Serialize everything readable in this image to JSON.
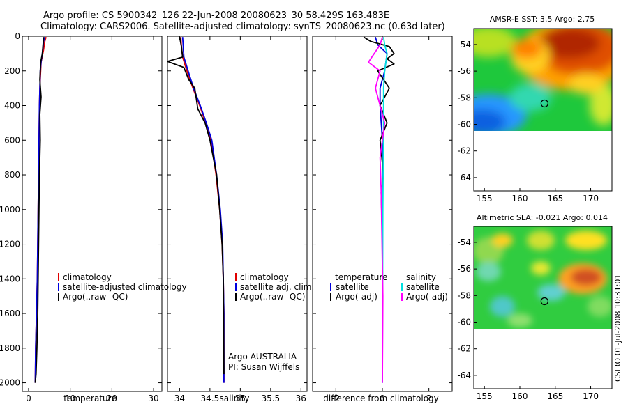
{
  "title": {
    "line1": "Argo profile: CS 5900342_126 22-Jun-2008 20080623_30 58.429S 163.483E",
    "line2": "Climatology: CARS2006. Satellite-adjusted climatology: synTS_20080623.nc (0.63d later)"
  },
  "side_label": "CSIRO 01-Jul-2008 10:31:01",
  "chart_data": [
    {
      "id": "temperature",
      "type": "line",
      "xlabel": "temperature",
      "ylabel": "",
      "xlim": [
        -1.5,
        32
      ],
      "ylim": [
        2050,
        0
      ],
      "xticks": [
        0,
        10,
        20,
        30
      ],
      "yticks": [
        0,
        200,
        400,
        600,
        800,
        1000,
        1200,
        1400,
        1600,
        1800,
        2000
      ],
      "legend": {
        "placement": "middle-left",
        "entries": [
          {
            "label": "climatology",
            "color": "#e00000"
          },
          {
            "label": "satellite-adjusted climatology",
            "color": "#0000dd"
          },
          {
            "label": "Argo(..raw -QC)",
            "color": "#000000"
          }
        ]
      },
      "series": [
        {
          "name": "climatology",
          "color": "#e00000",
          "x": [
            4.2,
            3.9,
            3.6,
            3.0,
            2.9,
            2.7,
            2.6,
            2.5,
            2.4,
            2.3,
            2.2,
            2.1,
            1.9,
            1.7,
            1.6
          ],
          "y": [
            5,
            30,
            80,
            150,
            200,
            300,
            400,
            600,
            800,
            1000,
            1200,
            1400,
            1600,
            1800,
            2000
          ]
        },
        {
          "name": "satellite-adjusted climatology",
          "color": "#0000dd",
          "x": [
            3.9,
            3.6,
            3.4,
            3.0,
            2.8,
            2.7,
            2.6,
            2.5,
            2.4,
            2.3,
            2.2,
            2.1,
            1.9,
            1.7,
            1.6
          ],
          "y": [
            5,
            30,
            80,
            150,
            200,
            300,
            400,
            600,
            800,
            1000,
            1200,
            1400,
            1600,
            1800,
            2000
          ]
        },
        {
          "name": "Argo(..raw -QC)",
          "color": "#000000",
          "x": [
            3.6,
            3.5,
            3.3,
            2.9,
            2.7,
            3.0,
            2.7,
            2.8,
            2.6,
            2.5,
            2.4,
            2.3,
            2.2,
            2.0,
            1.8,
            1.6
          ],
          "y": [
            5,
            40,
            100,
            150,
            250,
            350,
            450,
            600,
            800,
            1000,
            1200,
            1400,
            1600,
            1800,
            1950,
            2000
          ]
        }
      ]
    },
    {
      "id": "salinity",
      "type": "line",
      "xlabel": "salinity",
      "ylabel": "",
      "xlim": [
        33.8,
        36.1
      ],
      "ylim": [
        2050,
        0
      ],
      "xticks": [
        34,
        34.5,
        35,
        35.5,
        36
      ],
      "xticklabels": [
        "34",
        "34.5",
        "35",
        "35.5",
        "36"
      ],
      "legend": {
        "placement": "middle-left",
        "entries": [
          {
            "label": "climatology",
            "color": "#e00000"
          },
          {
            "label": "satellite adj. clim.",
            "color": "#0000dd"
          },
          {
            "label": "Argo(..raw -QC)",
            "color": "#000000"
          }
        ]
      },
      "annotation": [
        "Argo AUSTRALIA",
        "PI: Susan Wijffels"
      ],
      "series": [
        {
          "name": "climatology",
          "color": "#e00000",
          "x": [
            34.02,
            34.03,
            34.05,
            34.12,
            34.22,
            34.33,
            34.43,
            34.52,
            34.6,
            34.66,
            34.7,
            34.72,
            34.73,
            34.73
          ],
          "y": [
            5,
            60,
            120,
            200,
            300,
            400,
            500,
            600,
            800,
            1000,
            1200,
            1400,
            1600,
            2000
          ]
        },
        {
          "name": "satellite adj. clim.",
          "color": "#0000dd",
          "x": [
            34.05,
            34.06,
            34.07,
            34.14,
            34.23,
            34.34,
            34.44,
            34.53,
            34.61,
            34.67,
            34.71,
            34.72,
            34.73,
            34.73
          ],
          "y": [
            5,
            60,
            120,
            200,
            300,
            400,
            500,
            600,
            800,
            1000,
            1200,
            1400,
            1600,
            2000
          ]
        },
        {
          "name": "Argo(..raw -QC)",
          "color": "#000000",
          "x": [
            34.0,
            34.03,
            34.05,
            33.8,
            34.07,
            34.15,
            34.25,
            34.3,
            34.42,
            34.5,
            34.61,
            34.66,
            34.7,
            34.72,
            34.73
          ],
          "y": [
            5,
            60,
            120,
            145,
            180,
            250,
            300,
            420,
            500,
            600,
            800,
            1000,
            1200,
            1400,
            1950
          ]
        }
      ]
    },
    {
      "id": "difference",
      "type": "line",
      "xlabel": "difference from climatology",
      "ylabel": "",
      "xlim": [
        -3,
        3
      ],
      "ylim": [
        2050,
        0
      ],
      "xticks": [
        -2,
        0,
        2
      ],
      "legend": {
        "placement": "middle",
        "groups": [
          {
            "title": "temperature",
            "entries": [
              {
                "label": "satellite",
                "color": "#0000dd"
              },
              {
                "label": "Argo(-adj)",
                "color": "#000000"
              }
            ]
          },
          {
            "title": "salinity",
            "entries": [
              {
                "label": "satellite",
                "color": "#00e0e0"
              },
              {
                "label": "Argo(-adj)",
                "color": "#ff00ff"
              }
            ]
          }
        ]
      },
      "series": [
        {
          "name": "temperature satellite",
          "color": "#0000dd",
          "x": [
            -0.3,
            -0.2,
            0.2,
            0.1,
            -0.1,
            -0.1,
            0,
            0,
            0
          ],
          "y": [
            5,
            50,
            100,
            200,
            300,
            400,
            600,
            1000,
            2000
          ]
        },
        {
          "name": "temperature Argo(-adj)",
          "color": "#000000",
          "x": [
            -0.8,
            -0.5,
            0.3,
            0.5,
            0.2,
            0.5,
            -0.2,
            0.3,
            -0.1,
            0.2,
            -0.1,
            0.05,
            -0.05,
            0
          ],
          "y": [
            5,
            30,
            60,
            100,
            130,
            160,
            200,
            300,
            400,
            500,
            600,
            800,
            900,
            1200
          ]
        },
        {
          "name": "salinity satellite",
          "color": "#00e0e0",
          "x": [
            0.05,
            0.1,
            0.2,
            0.1,
            0.05,
            0.05,
            0.02,
            0
          ],
          "y": [
            5,
            50,
            100,
            200,
            300,
            500,
            1000,
            2000
          ]
        },
        {
          "name": "salinity Argo(-adj)",
          "color": "#ff00ff",
          "x": [
            0,
            -0.1,
            -0.6,
            -0.1,
            -0.3,
            -0.1,
            0.1,
            -0.1,
            -0.05,
            0.02,
            0
          ],
          "y": [
            5,
            50,
            150,
            200,
            300,
            400,
            500,
            700,
            900,
            1500,
            2000
          ]
        }
      ]
    },
    {
      "id": "sst-map",
      "type": "heatmap",
      "title": "AMSR-E SST: 3.5 Argo: 2.75",
      "xlim": [
        153.5,
        173
      ],
      "ylim": [
        -65,
        -52.8
      ],
      "xticks": [
        155,
        160,
        165,
        170
      ],
      "yticks": [
        -54,
        -56,
        -58,
        -60,
        -62,
        -64
      ],
      "data_extent_lat": [
        -60.1,
        -52.8
      ],
      "argo_position": {
        "lon": 163.483,
        "lat": -58.429
      }
    },
    {
      "id": "sla-map",
      "type": "heatmap",
      "title": "Altimetric SLA: -0.021 Argo: 0.014",
      "xlim": [
        153.5,
        173
      ],
      "ylim": [
        -65,
        -52.8
      ],
      "xticks": [
        155,
        160,
        165,
        170
      ],
      "yticks": [
        -54,
        -56,
        -58,
        -60,
        -62,
        -64
      ],
      "data_extent_lat": [
        -60.1,
        -52.8
      ],
      "argo_position": {
        "lon": 163.483,
        "lat": -58.429
      }
    }
  ]
}
